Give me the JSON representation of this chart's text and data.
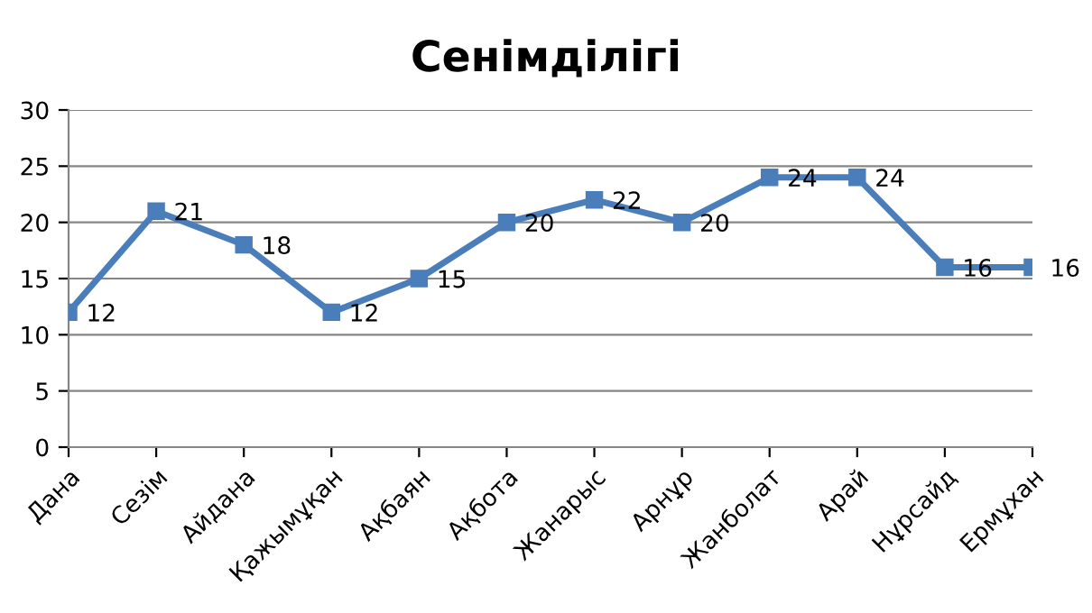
{
  "chart_data": {
    "type": "line",
    "title": "Сенімділігі",
    "categories": [
      "Дана",
      "Сезім",
      "Айдана",
      "Қажымұқан",
      "Ақбаян",
      "Ақбота",
      "Жанарыс",
      "Арнұр",
      "Жанболат",
      "Арай",
      "Нұрсайд",
      "Ермұхан"
    ],
    "series": [
      {
        "color": "#4a7ebb",
        "values": [
          12,
          21,
          18,
          12,
          15,
          20,
          22,
          20,
          24,
          24,
          16,
          16
        ]
      }
    ],
    "ylim": [
      0,
      30
    ],
    "yticks": [
      0,
      5,
      10,
      15,
      20,
      25,
      30
    ],
    "grid": "y",
    "data_labels": true,
    "marker": "square",
    "line_style": "solid"
  }
}
